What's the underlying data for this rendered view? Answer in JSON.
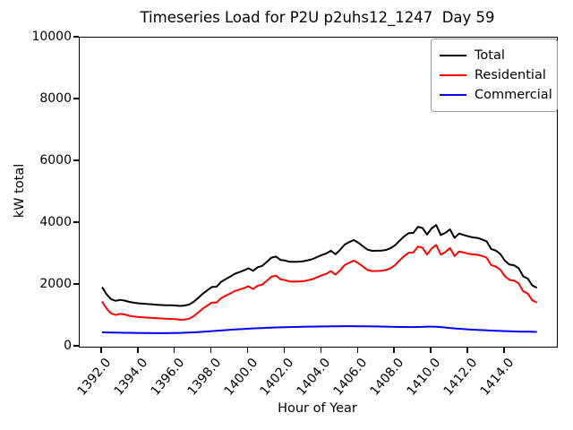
{
  "chart_data": {
    "type": "line",
    "title": "Timeseries Load for P2U p2uhs12_1247  Day 59",
    "xlabel": "Hour of Year",
    "ylabel": "kW total",
    "xlim": [
      1390.78,
      1416.84
    ],
    "ylim": [
      0,
      10000
    ],
    "grid": false,
    "legend_position": "upper right",
    "x_ticks": [
      1392,
      1394,
      1396,
      1398,
      1400,
      1402,
      1404,
      1406,
      1408,
      1410,
      1412,
      1414
    ],
    "x_tick_labels": [
      "1392.0",
      "1394.0",
      "1396.0",
      "1398.0",
      "1400.0",
      "1402.0",
      "1404.0",
      "1406.0",
      "1408.0",
      "1410.0",
      "1412.0",
      "1414.0"
    ],
    "y_ticks": [
      0,
      2000,
      4000,
      6000,
      8000,
      10000
    ],
    "y_tick_labels": [
      "0",
      "2000",
      "4000",
      "6000",
      "8000",
      "10000"
    ],
    "x_start": 1392.0,
    "x_step": 0.25,
    "series": [
      {
        "name": "Total",
        "color": "#000000",
        "values": [
          1928,
          1692,
          1533,
          1485,
          1517,
          1490,
          1448,
          1421,
          1404,
          1392,
          1380,
          1368,
          1357,
          1349,
          1343,
          1338,
          1333,
          1319,
          1330,
          1363,
          1450,
          1578,
          1712,
          1822,
          1933,
          1939,
          2095,
          2186,
          2267,
          2357,
          2411,
          2469,
          2537,
          2455,
          2572,
          2614,
          2741,
          2882,
          2917,
          2807,
          2787,
          2746,
          2744,
          2752,
          2765,
          2798,
          2835,
          2902,
          2964,
          3016,
          3103,
          2989,
          3131,
          3303,
          3385,
          3449,
          3362,
          3250,
          3138,
          3101,
          3104,
          3106,
          3128,
          3185,
          3282,
          3429,
          3567,
          3676,
          3681,
          3878,
          3842,
          3628,
          3830,
          3935,
          3614,
          3680,
          3796,
          3522,
          3660,
          3615,
          3570,
          3536,
          3518,
          3471,
          3409,
          3162,
          3111,
          3000,
          2784,
          2659,
          2634,
          2540,
          2276,
          2203,
          1980,
          1908
        ]
      },
      {
        "name": "Residential",
        "color": "#ff0000",
        "values": [
          1460,
          1230,
          1075,
          1030,
          1065,
          1040,
          1000,
          975,
          960,
          950,
          940,
          930,
          920,
          912,
          905,
          898,
          890,
          872,
          878,
          905,
          985,
          1105,
          1230,
          1330,
          1430,
          1425,
          1570,
          1650,
          1720,
          1800,
          1845,
          1895,
          1955,
          1865,
          1975,
          2010,
          2130,
          2265,
          2295,
          2180,
          2155,
          2110,
          2105,
          2110,
          2120,
          2150,
          2185,
          2250,
          2310,
          2360,
          2445,
          2330,
          2470,
          2640,
          2720,
          2785,
          2700,
          2590,
          2480,
          2445,
          2450,
          2455,
          2480,
          2540,
          2640,
          2790,
          2930,
          3040,
          3045,
          3240,
          3200,
          2980,
          3180,
          3290,
          2980,
          3060,
          3190,
          2930,
          3080,
          3045,
          3010,
          2985,
          2975,
          2935,
          2880,
          2640,
          2595,
          2490,
          2280,
          2160,
          2140,
          2050,
          1790,
          1720,
          1500,
          1430
        ]
      },
      {
        "name": "Commercial",
        "color": "#0000ff",
        "values": [
          468,
          462,
          458,
          455,
          452,
          450,
          448,
          446,
          444,
          442,
          440,
          438,
          437,
          437,
          438,
          440,
          443,
          447,
          452,
          458,
          465,
          473,
          482,
          492,
          503,
          514,
          525,
          536,
          547,
          557,
          566,
          574,
          582,
          590,
          597,
          604,
          611,
          617,
          622,
          627,
          632,
          636,
          639,
          642,
          645,
          648,
          650,
          652,
          654,
          656,
          658,
          659,
          661,
          663,
          665,
          664,
          662,
          660,
          658,
          656,
          654,
          651,
          648,
          645,
          642,
          639,
          637,
          636,
          636,
          638,
          642,
          648,
          650,
          645,
          634,
          620,
          606,
          592,
          580,
          570,
          560,
          551,
          543,
          536,
          529,
          522,
          516,
          510,
          504,
          499,
          494,
          490,
          486,
          483,
          480,
          478
        ]
      }
    ]
  }
}
